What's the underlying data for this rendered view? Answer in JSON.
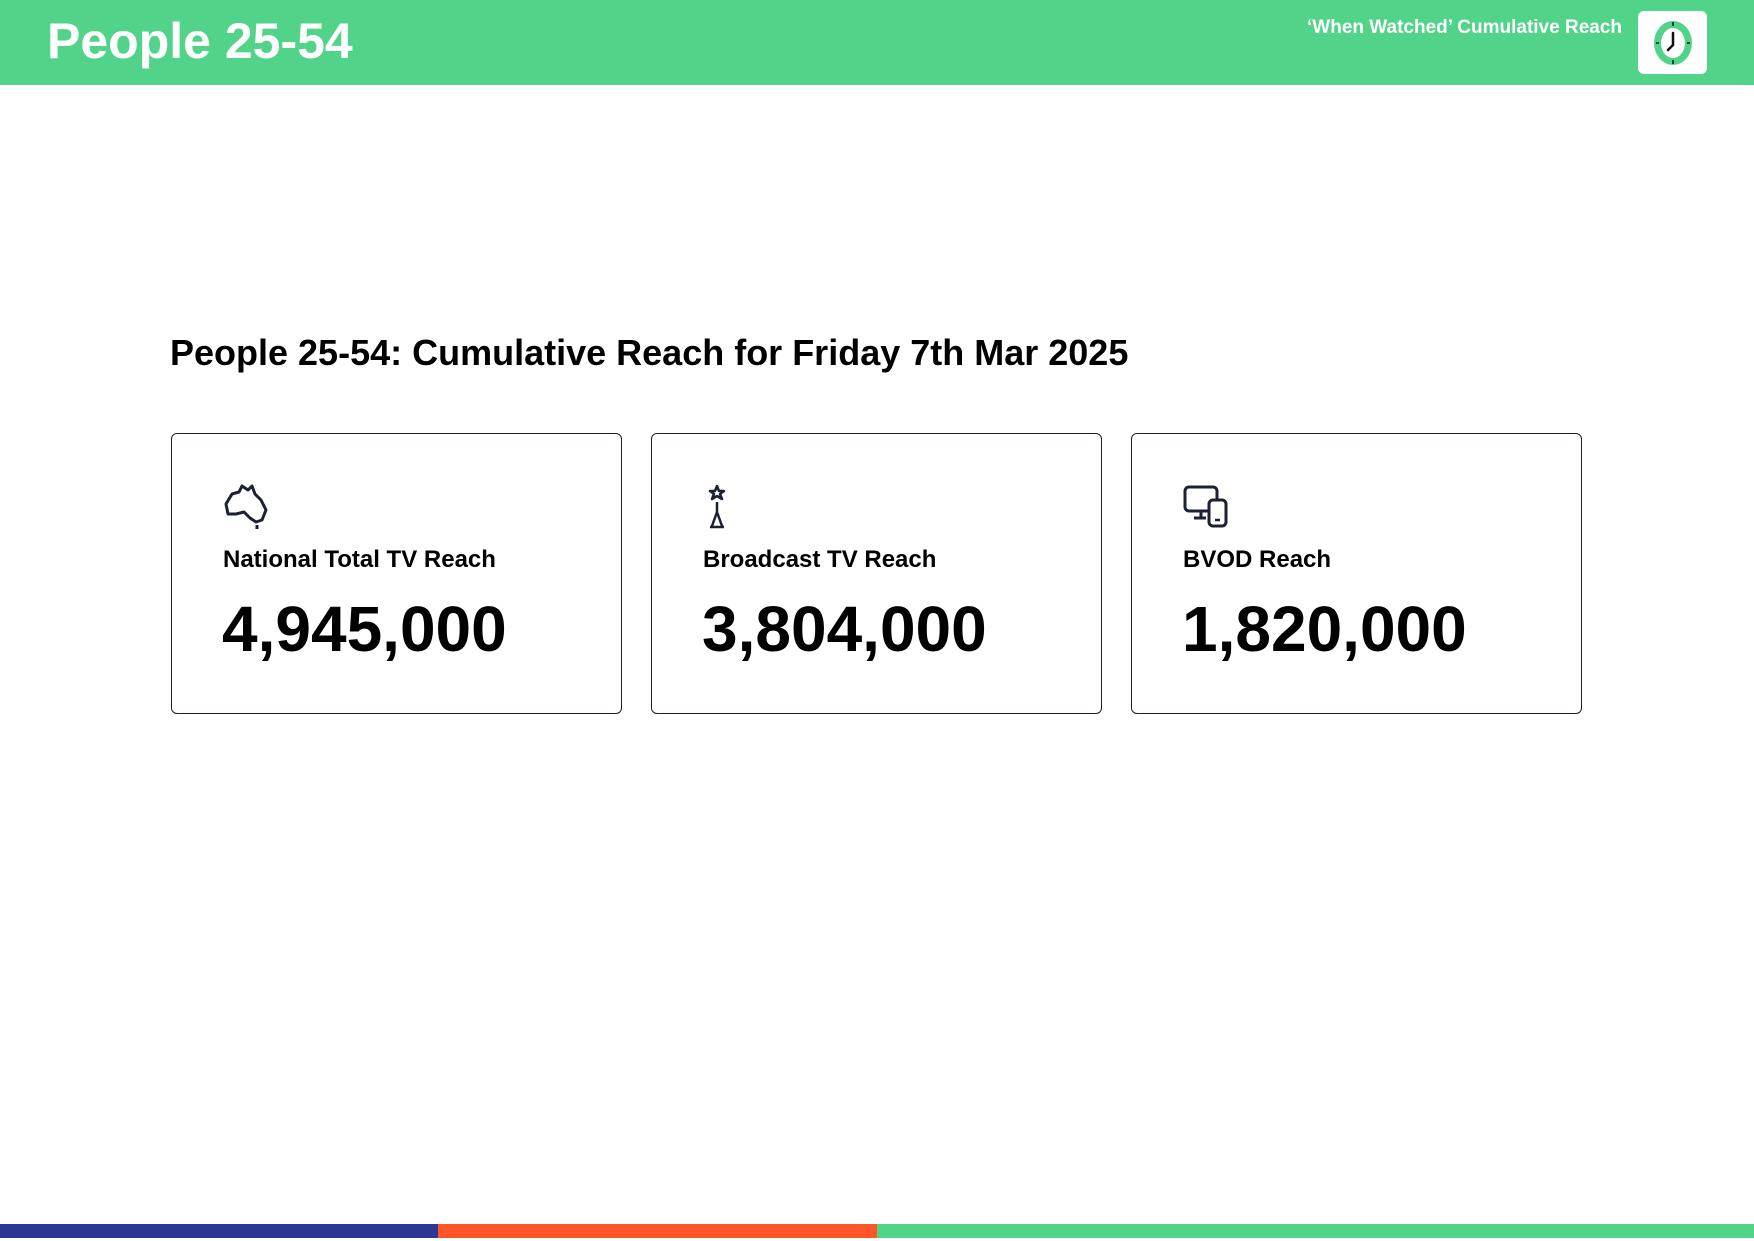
{
  "header": {
    "title": "People 25-54",
    "subtitle": "‘When Watched’ Cumulative Reach",
    "icon": "clock-icon"
  },
  "page_title": "People 25-54: Cumulative Reach for Friday 7th Mar 2025",
  "cards": [
    {
      "label": "National Total TV Reach",
      "value": "4,945,000",
      "icon": "australia-map-icon"
    },
    {
      "label": "Broadcast TV Reach",
      "value": "3,804,000",
      "icon": "broadcast-tower-icon"
    },
    {
      "label": "BVOD Reach",
      "value": "1,820,000",
      "icon": "devices-icon"
    }
  ],
  "colors": {
    "header": "#51d38a",
    "bar_blue": "#2b3793",
    "bar_orange": "#ff5527",
    "bar_green": "#51d38a",
    "card_border": "#1c2033"
  }
}
